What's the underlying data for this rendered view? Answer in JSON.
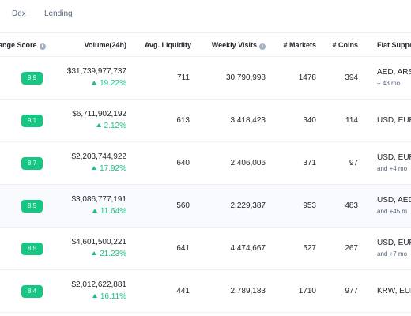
{
  "nav": {
    "tabs": [
      "Dex",
      "Lending"
    ]
  },
  "table": {
    "headers": {
      "score": "ange Score",
      "volume": "Volume(24h)",
      "liquidity": "Avg. Liquidity",
      "visits": "Weekly Visits",
      "markets": "# Markets",
      "coins": "# Coins",
      "fiat": "Fiat Suppor"
    },
    "rows": [
      {
        "score": "9.9",
        "volume": "$31,739,977,737",
        "change": "19.22%",
        "liquidity": "711",
        "visits": "30,790,998",
        "markets": "1478",
        "coins": "394",
        "fiat": "AED, ARS",
        "fiat_more": "+ 43 mo"
      },
      {
        "score": "9.1",
        "volume": "$6,711,902,192",
        "change": "2.12%",
        "liquidity": "613",
        "visits": "3,418,423",
        "markets": "340",
        "coins": "114",
        "fiat": "USD, EUR",
        "fiat_more": ""
      },
      {
        "score": "8.7",
        "volume": "$2,203,744,922",
        "change": "17.92%",
        "liquidity": "640",
        "visits": "2,406,006",
        "markets": "371",
        "coins": "97",
        "fiat": "USD, EUR",
        "fiat_more": "and +4 mo"
      },
      {
        "score": "8.5",
        "volume": "$3,086,777,191",
        "change": "11.64%",
        "liquidity": "560",
        "visits": "2,229,387",
        "markets": "953",
        "coins": "483",
        "fiat": "USD, AED",
        "fiat_more": "and +45 m"
      },
      {
        "score": "8.5",
        "volume": "$4,601,500,221",
        "change": "21.23%",
        "liquidity": "641",
        "visits": "4,474,667",
        "markets": "527",
        "coins": "267",
        "fiat": "USD, EUR",
        "fiat_more": "and +7 mo"
      },
      {
        "score": "8.4",
        "volume": "$2,012,622,881",
        "change": "16.11%",
        "liquidity": "441",
        "visits": "2,789,183",
        "markets": "1710",
        "coins": "977",
        "fiat": "KRW, EUR",
        "fiat_more": ""
      }
    ]
  },
  "colors": {
    "accent_green": "#16c784",
    "text": "#1e2329",
    "muted": "#58667e",
    "row_highlight": "#f8fafd"
  },
  "icons": {
    "header_info": "info-icon",
    "change_up": "triangle-up-icon"
  }
}
